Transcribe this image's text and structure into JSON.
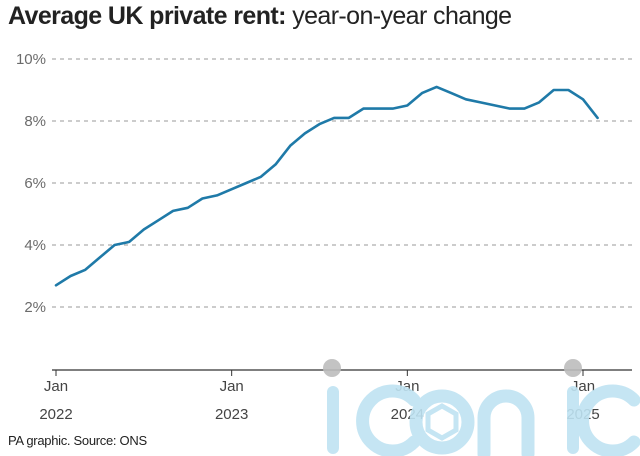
{
  "title_bold": "Average UK private rent:",
  "title_light": "year-on-year change",
  "source": "PA graphic. Source: ONS",
  "watermark_text": "iconic",
  "colors": {
    "line": "#1f7aa8",
    "grid": "#9a9a9a",
    "axis": "#333333",
    "watermark": "#bfe3f2"
  },
  "chart_data": {
    "type": "line",
    "title": "Average UK private rent: year-on-year change",
    "ylim": [
      0,
      10
    ],
    "y_ticks": [
      {
        "value": 2,
        "label": "2%"
      },
      {
        "value": 4,
        "label": "4%"
      },
      {
        "value": 6,
        "label": "6%"
      },
      {
        "value": 8,
        "label": "8%"
      },
      {
        "value": 10,
        "label": "10%"
      }
    ],
    "x_ticks": [
      {
        "month": "2022-01",
        "line1": "Jan",
        "line2": "2022"
      },
      {
        "month": "2023-01",
        "line1": "Jan",
        "line2": "2023"
      },
      {
        "month": "2024-01",
        "line1": "Jan",
        "line2": "2024"
      },
      {
        "month": "2025-01",
        "line1": "Jan",
        "line2": "2025"
      }
    ],
    "grid": "horizontal dashed",
    "series": [
      {
        "values": [
          {
            "x": "2022-01",
            "y": 2.7
          },
          {
            "x": "2022-02",
            "y": 3.0
          },
          {
            "x": "2022-03",
            "y": 3.2
          },
          {
            "x": "2022-04",
            "y": 3.6
          },
          {
            "x": "2022-05",
            "y": 4.0
          },
          {
            "x": "2022-06",
            "y": 4.1
          },
          {
            "x": "2022-07",
            "y": 4.5
          },
          {
            "x": "2022-08",
            "y": 4.8
          },
          {
            "x": "2022-09",
            "y": 5.1
          },
          {
            "x": "2022-10",
            "y": 5.2
          },
          {
            "x": "2022-11",
            "y": 5.5
          },
          {
            "x": "2022-12",
            "y": 5.6
          },
          {
            "x": "2023-01",
            "y": 5.8
          },
          {
            "x": "2023-02",
            "y": 6.0
          },
          {
            "x": "2023-03",
            "y": 6.2
          },
          {
            "x": "2023-04",
            "y": 6.6
          },
          {
            "x": "2023-05",
            "y": 7.2
          },
          {
            "x": "2023-06",
            "y": 7.6
          },
          {
            "x": "2023-07",
            "y": 7.9
          },
          {
            "x": "2023-08",
            "y": 8.1
          },
          {
            "x": "2023-09",
            "y": 8.1
          },
          {
            "x": "2023-10",
            "y": 8.4
          },
          {
            "x": "2023-11",
            "y": 8.4
          },
          {
            "x": "2023-12",
            "y": 8.4
          },
          {
            "x": "2024-01",
            "y": 8.5
          },
          {
            "x": "2024-02",
            "y": 8.9
          },
          {
            "x": "2024-03",
            "y": 9.1
          },
          {
            "x": "2024-04",
            "y": 8.9
          },
          {
            "x": "2024-05",
            "y": 8.7
          },
          {
            "x": "2024-06",
            "y": 8.6
          },
          {
            "x": "2024-07",
            "y": 8.5
          },
          {
            "x": "2024-08",
            "y": 8.4
          },
          {
            "x": "2024-09",
            "y": 8.4
          },
          {
            "x": "2024-10",
            "y": 8.6
          },
          {
            "x": "2024-11",
            "y": 9.0
          },
          {
            "x": "2024-12",
            "y": 9.0
          },
          {
            "x": "2025-01",
            "y": 8.7
          },
          {
            "x": "2025-02",
            "y": 8.1
          }
        ]
      }
    ]
  }
}
